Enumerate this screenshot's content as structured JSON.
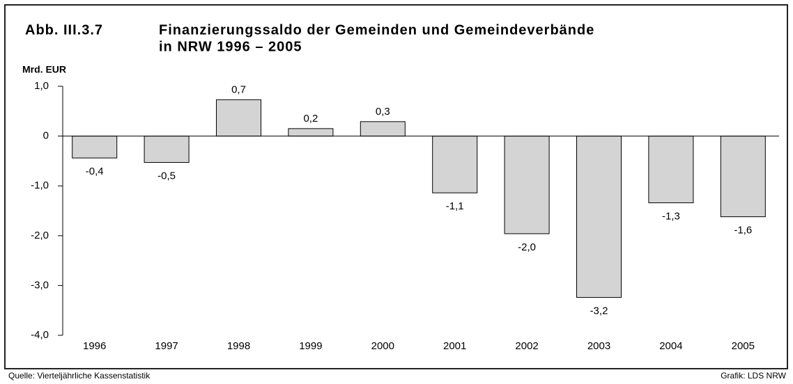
{
  "chart_data": {
    "type": "bar",
    "figure_label": "Abb. III.3.7",
    "title": [
      "Finanzierungssaldo der Gemeinden und Gemeindeverbände",
      "in NRW 1996 – 2005"
    ],
    "y_label": "Mrd. EUR",
    "categories": [
      "1996",
      "1997",
      "1998",
      "1999",
      "2000",
      "2001",
      "2002",
      "2003",
      "2004",
      "2005"
    ],
    "values": [
      -0.44,
      -0.53,
      0.73,
      0.15,
      0.29,
      -1.14,
      -1.96,
      -3.24,
      -1.34,
      -1.62
    ],
    "value_labels": [
      "-0,4",
      "-0,5",
      "0,7",
      "0,2",
      "0,3",
      "-1,1",
      "-2,0",
      "-3,2",
      "-1,3",
      "-1,6"
    ],
    "color": "#d4d4d4",
    "ylim": [
      -4,
      1
    ],
    "yticks": [
      {
        "value": -4,
        "label": "-4,0"
      },
      {
        "value": -3,
        "label": "-3,0"
      },
      {
        "value": -2,
        "label": "-2,0"
      },
      {
        "value": -1,
        "label": "-1,0"
      },
      0,
      {
        "value": 1,
        "label": "1,0"
      }
    ],
    "source": "Quelle: Vierteljährliche Kassenstatistik",
    "credit": "Grafik: LDS NRW"
  }
}
